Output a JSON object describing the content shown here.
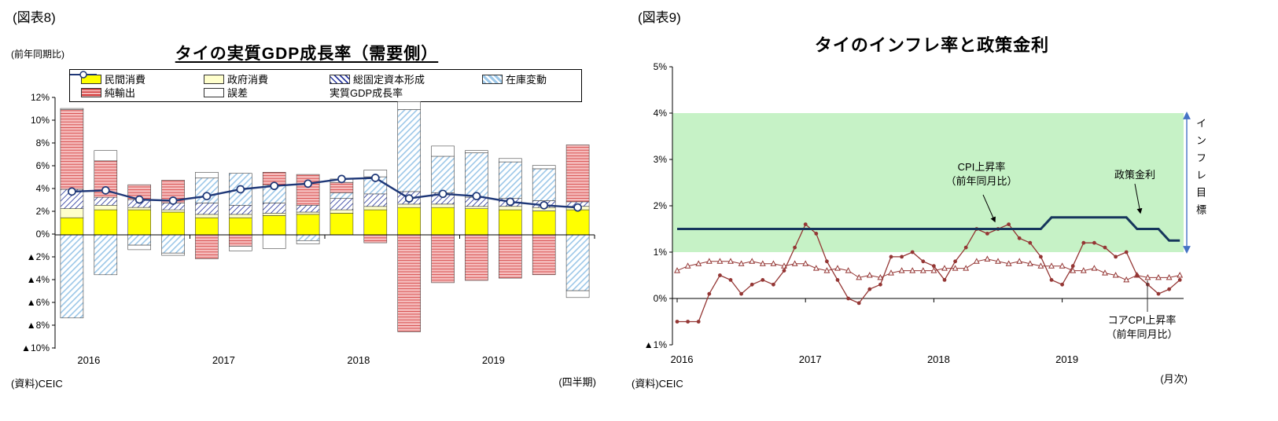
{
  "chart_data": [
    {
      "id": "thailand-gdp-demand",
      "type": "bar",
      "stacked": true,
      "figure_label": "(図表8)",
      "y_axis_note": "(前年同期比)",
      "title": "タイの実質GDP成長率（需要側）",
      "source": "(資料)CEIC",
      "x_note": "(四半期)",
      "ylim": [
        -10,
        12
      ],
      "grid": false,
      "legend_position": "top-box",
      "y_tick_labels": [
        "12%",
        "10%",
        "8%",
        "6%",
        "4%",
        "2%",
        "0%",
        "▲2%",
        "▲4%",
        "▲6%",
        "▲8%",
        "▲10%"
      ],
      "x_tick_labels": [
        "2016",
        "2017",
        "2018",
        "2019"
      ],
      "categories": [
        "2016Q1",
        "2016Q2",
        "2016Q3",
        "2016Q4",
        "2017Q1",
        "2017Q2",
        "2017Q3",
        "2017Q4",
        "2018Q1",
        "2018Q2",
        "2018Q3",
        "2018Q4",
        "2019Q1",
        "2019Q2",
        "2019Q3",
        "2019Q4"
      ],
      "series": [
        {
          "name": "民間消費",
          "type": "bar",
          "style": "solid-yellow",
          "color": "#FFFF00",
          "values": [
            1.5,
            2.2,
            2.2,
            2.0,
            1.5,
            1.5,
            1.7,
            1.8,
            1.9,
            2.2,
            2.4,
            2.4,
            2.3,
            2.2,
            2.1,
            2.2
          ]
        },
        {
          "name": "政府消費",
          "type": "bar",
          "style": "solid-cream",
          "color": "#FFFFCC",
          "values": [
            0.8,
            0.4,
            0.2,
            0.2,
            0.3,
            0.3,
            0.2,
            0.2,
            0.3,
            0.3,
            0.3,
            0.3,
            0.2,
            0.3,
            0.3,
            0.3
          ]
        },
        {
          "name": "総固定資本形成",
          "type": "bar",
          "style": "hatch-diagonal-blue",
          "color": "#2B3A9E",
          "values": [
            1.7,
            0.7,
            0.7,
            0.6,
            1.0,
            0.8,
            0.9,
            0.6,
            1.0,
            1.1,
            1.1,
            1.0,
            0.8,
            0.7,
            0.6,
            0.4
          ]
        },
        {
          "name": "在庫変動",
          "type": "bar",
          "style": "hatch-diagonal-lightblue",
          "color": "#9CC7E8",
          "values": [
            -7.3,
            -3.5,
            -0.9,
            -1.6,
            2.2,
            2.8,
            1.6,
            -0.5,
            0.5,
            1.5,
            7.2,
            3.2,
            3.9,
            3.2,
            2.8,
            -4.9
          ]
        },
        {
          "name": "純輸出",
          "type": "bar",
          "style": "hatch-horizontal-red",
          "color": "#D23B3B",
          "values": [
            7.0,
            3.2,
            1.3,
            2.0,
            -2.1,
            -1.0,
            1.1,
            2.7,
            0.9,
            -0.7,
            -8.5,
            -4.2,
            -4.0,
            -3.8,
            -3.5,
            5.0
          ]
        },
        {
          "name": "誤差",
          "type": "bar",
          "style": "solid-white",
          "color": "#FFFFFF",
          "values": [
            0.1,
            0.9,
            -0.4,
            -0.2,
            0.5,
            -0.4,
            -1.2,
            -0.3,
            0.3,
            0.6,
            0.7,
            0.9,
            0.2,
            0.3,
            0.3,
            -0.6
          ]
        },
        {
          "name": "実質GDP成長率",
          "type": "line",
          "style": "line-circle",
          "color": "#1F3878",
          "marker": "circle-open",
          "values": [
            3.8,
            3.9,
            3.1,
            3.0,
            3.4,
            4.0,
            4.3,
            4.5,
            4.9,
            5.0,
            3.2,
            3.6,
            3.4,
            2.9,
            2.6,
            2.4
          ]
        }
      ]
    },
    {
      "id": "thailand-inflation-policy-rate",
      "type": "line",
      "figure_label": "(図表9)",
      "title": "タイのインフレ率と政策金利",
      "source": "(資料)CEIC",
      "x_note": "(月次)",
      "ylim": [
        -1,
        5
      ],
      "grid": false,
      "y_tick_labels": [
        "5%",
        "4%",
        "3%",
        "2%",
        "1%",
        "0%",
        "▲1%"
      ],
      "x_tick_labels": [
        "2016",
        "2017",
        "2018",
        "2019"
      ],
      "target_band": {
        "label": "インフレ目標",
        "from": 1,
        "to": 4,
        "color": "#C6F2C6",
        "arrow_color": "#4472C4"
      },
      "annotations": {
        "cpi": "CPI上昇率\n（前年同月比）",
        "policy": "政策金利",
        "core": "コアCPI上昇率\n（前年同月比）"
      },
      "series": [
        {
          "name": "CPI上昇率（前年同月比）",
          "color": "#943634",
          "marker": "dot",
          "width": 1.3,
          "values": [
            -0.5,
            -0.5,
            -0.5,
            0.1,
            0.5,
            0.4,
            0.1,
            0.3,
            0.4,
            0.3,
            0.6,
            1.1,
            1.6,
            1.4,
            0.8,
            0.4,
            0.0,
            -0.1,
            0.2,
            0.3,
            0.9,
            0.9,
            1.0,
            0.8,
            0.7,
            0.4,
            0.8,
            1.1,
            1.5,
            1.4,
            1.5,
            1.6,
            1.3,
            1.2,
            0.9,
            0.4,
            0.3,
            0.7,
            1.2,
            1.2,
            1.1,
            0.9,
            1.0,
            0.5,
            0.3,
            0.1,
            0.2,
            0.4
          ]
        },
        {
          "name": "コアCPI上昇率（前年同月比）",
          "color": "#943634",
          "marker": "triangle-open",
          "width": 1,
          "values": [
            0.6,
            0.7,
            0.75,
            0.8,
            0.8,
            0.8,
            0.75,
            0.8,
            0.75,
            0.75,
            0.7,
            0.75,
            0.75,
            0.65,
            0.6,
            0.65,
            0.6,
            0.45,
            0.5,
            0.45,
            0.55,
            0.6,
            0.6,
            0.6,
            0.6,
            0.65,
            0.65,
            0.65,
            0.8,
            0.85,
            0.8,
            0.75,
            0.8,
            0.75,
            0.7,
            0.7,
            0.7,
            0.6,
            0.6,
            0.65,
            0.55,
            0.5,
            0.4,
            0.5,
            0.45,
            0.45,
            0.45,
            0.5
          ]
        },
        {
          "name": "政策金利",
          "color": "#16365C",
          "marker": "none",
          "width": 3,
          "values": [
            1.5,
            1.5,
            1.5,
            1.5,
            1.5,
            1.5,
            1.5,
            1.5,
            1.5,
            1.5,
            1.5,
            1.5,
            1.5,
            1.5,
            1.5,
            1.5,
            1.5,
            1.5,
            1.5,
            1.5,
            1.5,
            1.5,
            1.5,
            1.5,
            1.5,
            1.5,
            1.5,
            1.5,
            1.5,
            1.5,
            1.5,
            1.5,
            1.5,
            1.5,
            1.5,
            1.75,
            1.75,
            1.75,
            1.75,
            1.75,
            1.75,
            1.75,
            1.75,
            1.5,
            1.5,
            1.5,
            1.25,
            1.25
          ]
        }
      ]
    }
  ]
}
